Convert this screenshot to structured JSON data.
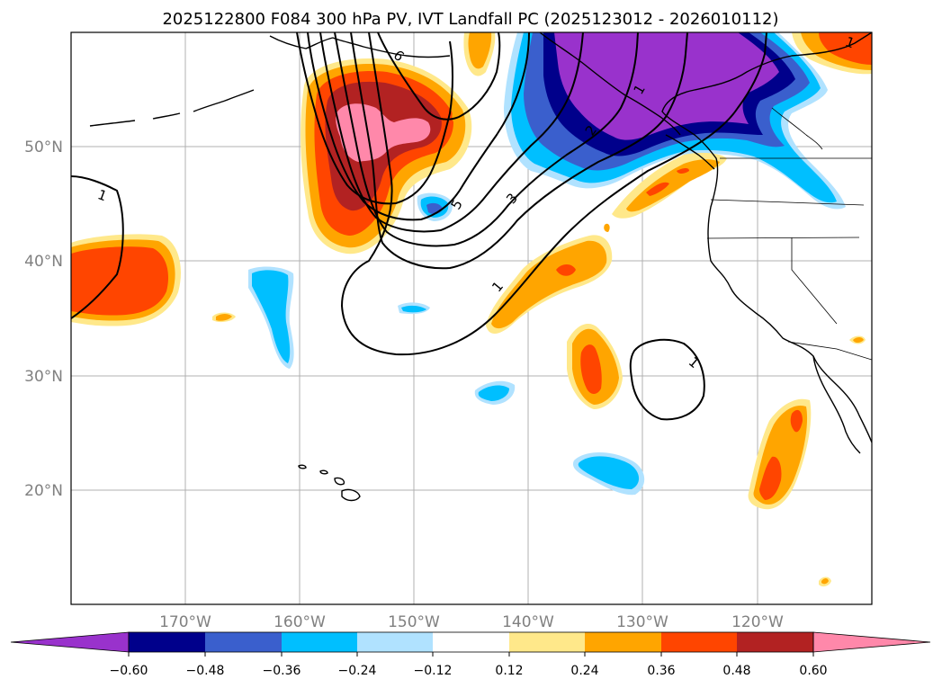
{
  "map": {
    "title": "2025122800 F084 300 hPa PV, IVT Landfall PC (2025123012 - 2026010112)",
    "extent": {
      "lon_min": -180,
      "lon_max": -110,
      "lat_min": 10,
      "lat_max": 60
    },
    "gridlines": {
      "lons": [
        -170,
        -160,
        -150,
        -140,
        -130,
        -120
      ],
      "lats": [
        20,
        30,
        40,
        50
      ]
    },
    "lon_labels": [
      "170°W",
      "160°W",
      "150°W",
      "140°W",
      "130°W",
      "120°W"
    ],
    "lat_labels": [
      "20°N",
      "30°N",
      "40°N",
      "50°N"
    ],
    "colorbar": {
      "levels": [
        -0.6,
        -0.48,
        -0.36,
        -0.24,
        -0.12,
        0.12,
        0.24,
        0.36,
        0.48,
        0.6
      ],
      "tick_labels": [
        "−0.60",
        "−0.48",
        "−0.36",
        "−0.24",
        "−0.12",
        "0.12",
        "0.24",
        "0.36",
        "0.48",
        "0.60"
      ],
      "colors": [
        "#9932cc",
        "#00008b",
        "#3a5fcd",
        "#00bfff",
        "#b0e2ff",
        "#ffffff",
        "#ffe88a",
        "#ffa500",
        "#ff4500",
        "#b22222",
        "#ff88aa"
      ],
      "extend": "both"
    },
    "contour_labels": [
      "1",
      "1",
      "1",
      "1",
      "2",
      "3",
      "5",
      "6",
      "1"
    ],
    "colors": {
      "coast": "#000000",
      "grid": "#b0b0b0",
      "label_gray": "#808080"
    }
  }
}
